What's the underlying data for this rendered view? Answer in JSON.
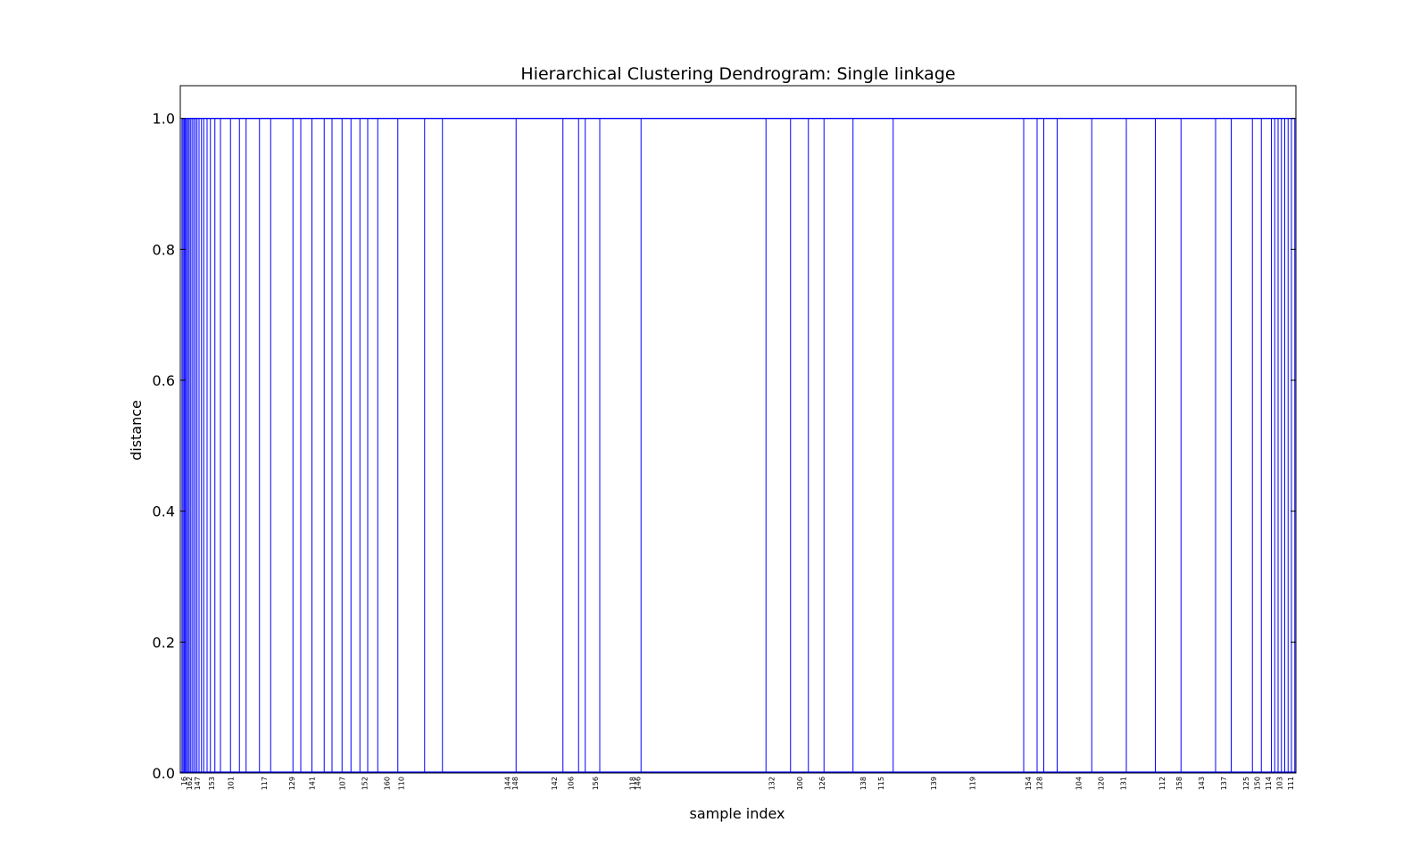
{
  "chart_data": {
    "type": "dendrogram",
    "title": "Hierarchical Clustering Dendrogram: Single linkage",
    "xlabel": "sample index",
    "ylabel": "distance",
    "ylim": [
      0,
      1.05
    ],
    "yticks": [
      "0.0",
      "0.2",
      "0.4",
      "0.6",
      "0.8",
      "1.0"
    ],
    "grid": false,
    "legend": "none",
    "merge_height": 1.0,
    "link_color": "#0000ff",
    "leaf_count": 1000,
    "leaf_ticks": [
      {
        "fraction": 0.003,
        "label": "16"
      },
      {
        "fraction": 0.008,
        "label": "162"
      },
      {
        "fraction": 0.015,
        "label": "147"
      },
      {
        "fraction": 0.028,
        "label": "153"
      },
      {
        "fraction": 0.045,
        "label": "101"
      },
      {
        "fraction": 0.075,
        "label": "117"
      },
      {
        "fraction": 0.1,
        "label": "129"
      },
      {
        "fraction": 0.118,
        "label": "141"
      },
      {
        "fraction": 0.145,
        "label": "107"
      },
      {
        "fraction": 0.165,
        "label": "152"
      },
      {
        "fraction": 0.185,
        "label": "160"
      },
      {
        "fraction": 0.198,
        "label": "110"
      },
      {
        "fraction": 0.293,
        "label": "144"
      },
      {
        "fraction": 0.3,
        "label": "148"
      },
      {
        "fraction": 0.335,
        "label": "142"
      },
      {
        "fraction": 0.35,
        "label": "106"
      },
      {
        "fraction": 0.372,
        "label": "156"
      },
      {
        "fraction": 0.405,
        "label": "118"
      },
      {
        "fraction": 0.41,
        "label": "146"
      },
      {
        "fraction": 0.53,
        "label": "132"
      },
      {
        "fraction": 0.555,
        "label": "100"
      },
      {
        "fraction": 0.575,
        "label": "126"
      },
      {
        "fraction": 0.612,
        "label": "138"
      },
      {
        "fraction": 0.628,
        "label": "115"
      },
      {
        "fraction": 0.675,
        "label": "139"
      },
      {
        "fraction": 0.71,
        "label": "119"
      },
      {
        "fraction": 0.76,
        "label": "154"
      },
      {
        "fraction": 0.77,
        "label": "128"
      },
      {
        "fraction": 0.805,
        "label": "104"
      },
      {
        "fraction": 0.825,
        "label": "120"
      },
      {
        "fraction": 0.845,
        "label": "131"
      },
      {
        "fraction": 0.88,
        "label": "112"
      },
      {
        "fraction": 0.895,
        "label": "158"
      },
      {
        "fraction": 0.915,
        "label": "143"
      },
      {
        "fraction": 0.935,
        "label": "137"
      },
      {
        "fraction": 0.955,
        "label": "125"
      },
      {
        "fraction": 0.965,
        "label": "150"
      },
      {
        "fraction": 0.975,
        "label": "114"
      },
      {
        "fraction": 0.985,
        "label": "103"
      },
      {
        "fraction": 0.995,
        "label": "111"
      }
    ],
    "links": [
      0.0015,
      0.0025,
      0.0035,
      0.0045,
      0.0055,
      0.0065,
      0.0078,
      0.009,
      0.0105,
      0.012,
      0.0135,
      0.015,
      0.0168,
      0.019,
      0.021,
      0.024,
      0.027,
      0.031,
      0.036,
      0.045,
      0.053,
      0.059,
      0.071,
      0.081,
      0.101,
      0.108,
      0.118,
      0.129,
      0.136,
      0.145,
      0.153,
      0.161,
      0.168,
      0.177,
      0.195,
      0.219,
      0.235,
      0.301,
      0.343,
      0.357,
      0.363,
      0.376,
      0.413,
      0.525,
      0.547,
      0.563,
      0.577,
      0.603,
      0.639,
      0.756,
      0.768,
      0.774,
      0.786,
      0.817,
      0.848,
      0.874,
      0.897,
      0.928,
      0.942,
      0.961,
      0.969,
      0.978,
      0.981,
      0.984,
      0.987,
      0.99,
      0.993,
      0.996,
      0.999
    ]
  }
}
